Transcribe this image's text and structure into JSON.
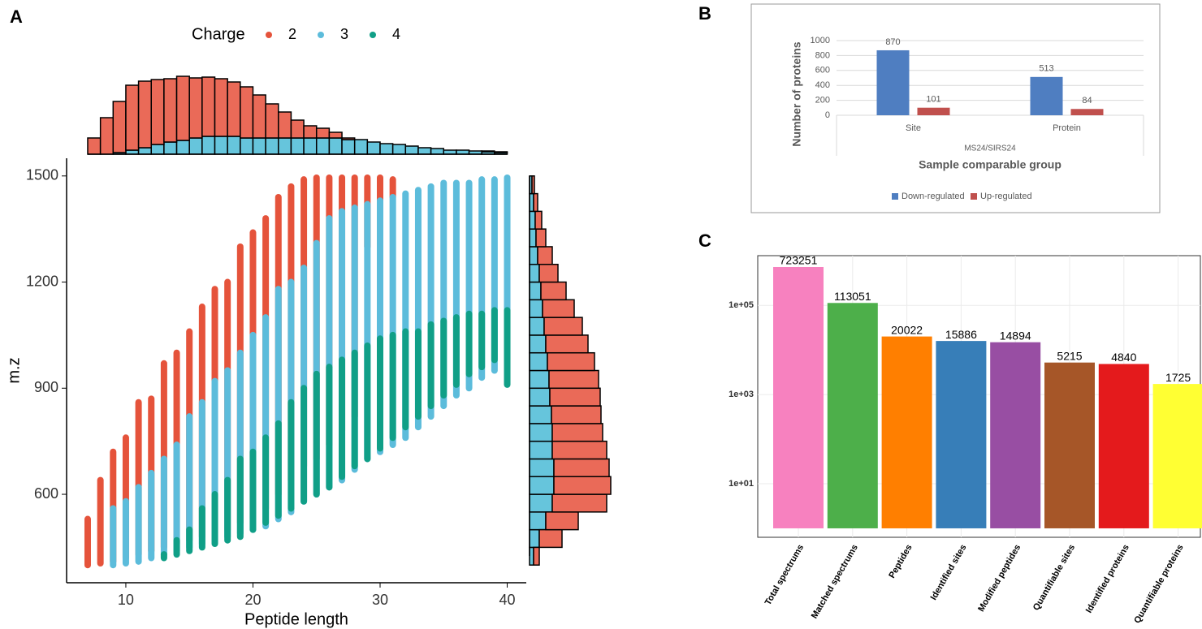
{
  "chart_data": [
    {
      "type": "scatter",
      "label": "A",
      "legend_title": "Charge",
      "xlabel": "Peptide length",
      "ylabel": "m.z",
      "xlim": [
        5.34,
        41.5
      ],
      "ylim": [
        350,
        1550
      ],
      "xticks": [
        10,
        20,
        30,
        40
      ],
      "yticks": [
        600,
        900,
        1200,
        1500
      ],
      "series": [
        {
          "name": "2",
          "color": "#e5533b",
          "x": [
            7,
            8,
            9,
            10,
            11,
            12,
            13,
            14,
            15,
            16,
            17,
            18,
            19,
            20,
            21,
            22,
            23,
            24,
            25,
            26,
            27,
            28,
            29,
            30,
            31
          ],
          "ymin": [
            400,
            405,
            410,
            420,
            430,
            440,
            450,
            460,
            470,
            480,
            490,
            500,
            520,
            530,
            560,
            600,
            640,
            680,
            700,
            740,
            780,
            820,
            1300,
            1380,
            1440
          ],
          "ymax": [
            530,
            640,
            720,
            760,
            860,
            870,
            970,
            1000,
            1060,
            1130,
            1180,
            1200,
            1300,
            1340,
            1380,
            1440,
            1470,
            1490,
            1495,
            1495,
            1495,
            1495,
            1495,
            1495,
            1490
          ]
        },
        {
          "name": "3",
          "color": "#5cbcdb",
          "x": [
            9,
            10,
            11,
            12,
            13,
            14,
            15,
            16,
            17,
            18,
            19,
            20,
            21,
            22,
            23,
            24,
            25,
            26,
            27,
            28,
            29,
            30,
            31,
            32,
            33,
            34,
            35,
            36,
            37,
            38,
            39,
            40
          ],
          "ymin": [
            400,
            405,
            410,
            420,
            430,
            440,
            450,
            460,
            470,
            480,
            490,
            500,
            510,
            530,
            550,
            580,
            600,
            620,
            640,
            670,
            700,
            720,
            740,
            760,
            790,
            820,
            850,
            880,
            900,
            930,
            950,
            980
          ],
          "ymax": [
            560,
            580,
            620,
            660,
            700,
            740,
            820,
            860,
            920,
            950,
            1000,
            1050,
            1100,
            1180,
            1200,
            1240,
            1310,
            1380,
            1400,
            1410,
            1420,
            1430,
            1440,
            1450,
            1460,
            1470,
            1480,
            1480,
            1480,
            1490,
            1490,
            1495
          ]
        },
        {
          "name": "4",
          "color": "#109f87",
          "x": [
            13,
            14,
            15,
            16,
            17,
            18,
            19,
            20,
            21,
            22,
            23,
            24,
            25,
            26,
            27,
            28,
            29,
            30,
            31,
            32,
            33,
            34,
            35,
            36,
            37,
            38,
            39,
            40
          ],
          "ymin": [
            420,
            430,
            440,
            450,
            460,
            470,
            480,
            500,
            520,
            540,
            560,
            580,
            600,
            620,
            650,
            680,
            700,
            730,
            760,
            790,
            820,
            850,
            880,
            910,
            940,
            960,
            980,
            910
          ],
          "ymax": [
            430,
            470,
            500,
            560,
            600,
            640,
            700,
            720,
            760,
            800,
            860,
            900,
            940,
            960,
            980,
            1000,
            1020,
            1040,
            1050,
            1060,
            1060,
            1080,
            1090,
            1100,
            1110,
            1110,
            1120,
            1120
          ]
        }
      ]
    },
    {
      "type": "histogram",
      "orientation": "vertical",
      "xlim": [
        5.34,
        41.5
      ],
      "ylim": [
        0,
        100
      ],
      "bins": [
        7,
        8,
        9,
        10,
        11,
        12,
        13,
        14,
        15,
        16,
        17,
        18,
        19,
        20,
        21,
        22,
        23,
        24,
        25,
        26,
        27,
        28,
        29,
        30,
        31,
        32,
        33,
        34,
        35,
        36,
        37,
        38,
        39,
        40
      ],
      "series": [
        {
          "name": "3",
          "color": "#66c5dc",
          "values": [
            0,
            0,
            2,
            5,
            8,
            12,
            15,
            17,
            20,
            22,
            22,
            22,
            20,
            20,
            20,
            20,
            20,
            20,
            20,
            20,
            18,
            18,
            15,
            13,
            12,
            10,
            8,
            7,
            5,
            5,
            4,
            3,
            2
          ]
        },
        {
          "name": "2",
          "color": "#ea6a58",
          "values": [
            20,
            45,
            63,
            80,
            82,
            80,
            78,
            79,
            74,
            73,
            71,
            67,
            63,
            53,
            42,
            32,
            22,
            15,
            12,
            7,
            2,
            0,
            0,
            0,
            0,
            0,
            0,
            0,
            0,
            0,
            0,
            1,
            1
          ]
        }
      ]
    },
    {
      "type": "histogram",
      "orientation": "horizontal",
      "xlim": [
        0,
        108
      ],
      "ylim": [
        350,
        1550
      ],
      "bins": [
        400,
        450,
        500,
        550,
        600,
        650,
        700,
        750,
        800,
        850,
        900,
        950,
        1000,
        1050,
        1100,
        1150,
        1200,
        1250,
        1300,
        1350,
        1400,
        1450,
        1500
      ],
      "series": [
        {
          "name": "3",
          "color": "#66c5dc",
          "values": [
            5,
            12,
            20,
            28,
            30,
            30,
            28,
            28,
            27,
            25,
            24,
            22,
            20,
            18,
            16,
            14,
            12,
            10,
            8,
            7,
            5,
            3
          ]
        },
        {
          "name": "2",
          "color": "#ea6a58",
          "values": [
            7,
            28,
            40,
            67,
            70,
            68,
            67,
            62,
            61,
            62,
            61,
            58,
            52,
            47,
            39,
            31,
            23,
            18,
            12,
            8,
            5,
            3
          ]
        }
      ]
    },
    {
      "type": "bar",
      "label": "B",
      "ylabel": "Number of proteins",
      "xlabel": "Sample comparable group",
      "group_label": "MS24/SIRS24",
      "categories": [
        "Site",
        "Protein"
      ],
      "ylim": [
        0,
        1000
      ],
      "yticks": [
        0,
        200,
        400,
        600,
        800,
        1000
      ],
      "grid": true,
      "legend": "bottom",
      "series": [
        {
          "name": "Down-regulated",
          "color": "#4f7ec1",
          "values": [
            870,
            513
          ]
        },
        {
          "name": "Up-regulated",
          "color": "#c0504d",
          "values": [
            101,
            84
          ]
        }
      ]
    },
    {
      "type": "bar",
      "label": "C",
      "log_y": true,
      "grid": true,
      "categories": [
        "Total spectrums",
        "Matched spectrums",
        "Peptides",
        "Identified sites",
        "Modified peptides",
        "Quantifiable sites",
        "Identified proteins",
        "Quantifiable proteins"
      ],
      "values": [
        723251,
        113051,
        20022,
        15886,
        14894,
        5215,
        4840,
        1725
      ],
      "colors": [
        "#f781bf",
        "#4daf4a",
        "#ff7f00",
        "#377eb8",
        "#984ea3",
        "#a65628",
        "#e41a1c",
        "#ffff33"
      ],
      "ylim": [
        0.63,
        1300000
      ],
      "yticks": [
        {
          "value": 10,
          "label": "1e+01"
        },
        {
          "value": 1000,
          "label": "1e+03"
        },
        {
          "value": 100000,
          "label": "1e+05"
        }
      ]
    }
  ]
}
